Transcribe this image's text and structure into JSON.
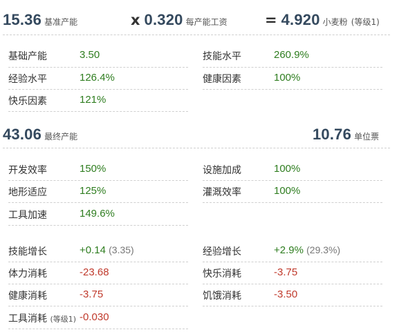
{
  "header": {
    "base_output": {
      "value": "15.36",
      "label": "基准产能"
    },
    "multiplier": {
      "op": "x",
      "value": "0.320",
      "label": "每产能工资"
    },
    "result": {
      "op": "=",
      "value": "4.920",
      "label": "小麦粉",
      "note": "(等级1)"
    }
  },
  "base_stats": [
    {
      "label": "基础产能",
      "value": "3.50"
    },
    {
      "label": "技能水平",
      "value": "260.9%"
    },
    {
      "label": "经验水平",
      "value": "126.4%"
    },
    {
      "label": "健康因素",
      "value": "100%"
    },
    {
      "label": "快乐因素",
      "value": "121%"
    }
  ],
  "final": {
    "output": {
      "value": "43.06",
      "label": "最终产能"
    },
    "unit_price": {
      "value": "10.76",
      "label": "单位票"
    }
  },
  "modifiers": [
    {
      "label": "开发效率",
      "value": "150%"
    },
    {
      "label": "设施加成",
      "value": "100%"
    },
    {
      "label": "地形适应",
      "value": "125%"
    },
    {
      "label": "灌溉效率",
      "value": "100%"
    },
    {
      "label": "工具加速",
      "value": "149.6%"
    }
  ],
  "changes": {
    "skill_growth": {
      "label": "技能增长",
      "value": "+0.14",
      "sub": "(3.35)"
    },
    "exp_growth": {
      "label": "经验增长",
      "value": "+2.9%",
      "sub": "(29.3%)"
    },
    "stamina_cost": {
      "label": "体力消耗",
      "value": "-23.68"
    },
    "happy_cost": {
      "label": "快乐消耗",
      "value": "-3.75"
    },
    "health_cost": {
      "label": "健康消耗",
      "value": "-3.75"
    },
    "hunger_cost": {
      "label": "饥饿消耗",
      "value": "-3.50"
    },
    "tool_cost": {
      "label": "工具消耗",
      "note": "(等级1)",
      "value": "-0.030"
    }
  },
  "colors": {
    "positive": "#2e7d1f",
    "negative": "#c0392b",
    "number": "#34495e"
  }
}
